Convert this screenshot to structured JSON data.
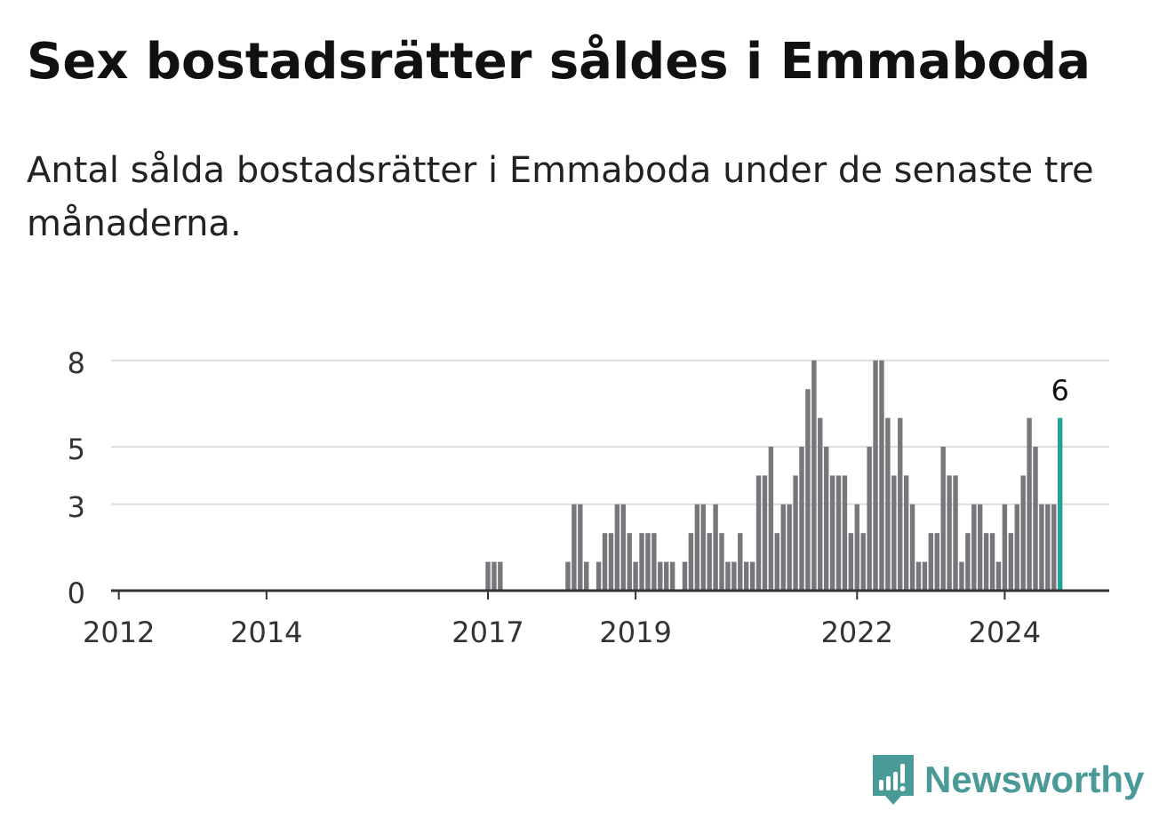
{
  "header": {
    "title": "Sex bostadsrätter såldes i Emmaboda",
    "subtitle": "Antal sålda bostadsrätter i Emmaboda under de senaste tre månaderna."
  },
  "brand": {
    "name": "Newsworthy",
    "color": "#4a9a98",
    "icon": "bar-chart-speech-bubble-icon"
  },
  "colors": {
    "bar": "#76767b",
    "highlight": "#22a39a",
    "grid": "#dddddd",
    "axis": "#333333",
    "tick_text": "#333333"
  },
  "chart_data": {
    "type": "bar",
    "title": "Sex bostadsrätter såldes i Emmaboda",
    "subtitle": "Antal sålda bostadsrätter i Emmaboda under de senaste tre månaderna.",
    "xlabel": "",
    "ylabel": "",
    "x_ticks": [
      "2012",
      "2014",
      "2017",
      "2019",
      "2022",
      "2024"
    ],
    "y_ticks": [
      0,
      3,
      5,
      8
    ],
    "ylim": [
      0,
      9
    ],
    "grid": true,
    "highlight_label": "6",
    "series": [
      {
        "values": [
          1,
          1,
          1,
          0,
          0,
          0,
          0,
          0,
          0,
          0,
          0,
          0,
          0,
          1,
          3,
          3,
          1,
          0,
          1,
          2,
          2,
          3,
          3,
          2,
          1,
          2,
          2,
          2,
          1,
          1,
          1,
          0,
          1,
          2,
          3,
          3,
          2,
          3,
          2,
          1,
          1,
          2,
          1,
          1,
          4,
          4,
          5,
          2,
          3,
          3,
          4,
          5,
          7,
          8,
          6,
          5,
          4,
          4,
          4,
          2,
          3,
          2,
          5,
          8,
          8,
          6,
          4,
          6,
          4,
          3,
          1,
          1,
          2,
          2,
          5,
          4,
          4,
          1,
          2,
          3,
          3,
          2,
          2,
          1,
          3,
          2,
          3,
          4,
          6,
          5,
          3,
          3,
          3,
          6
        ]
      }
    ],
    "notes_on_x": "Monthly bars; first nonzero bars start in early 2017 and the last bar (highlighted, value 6) is in late 2024."
  }
}
